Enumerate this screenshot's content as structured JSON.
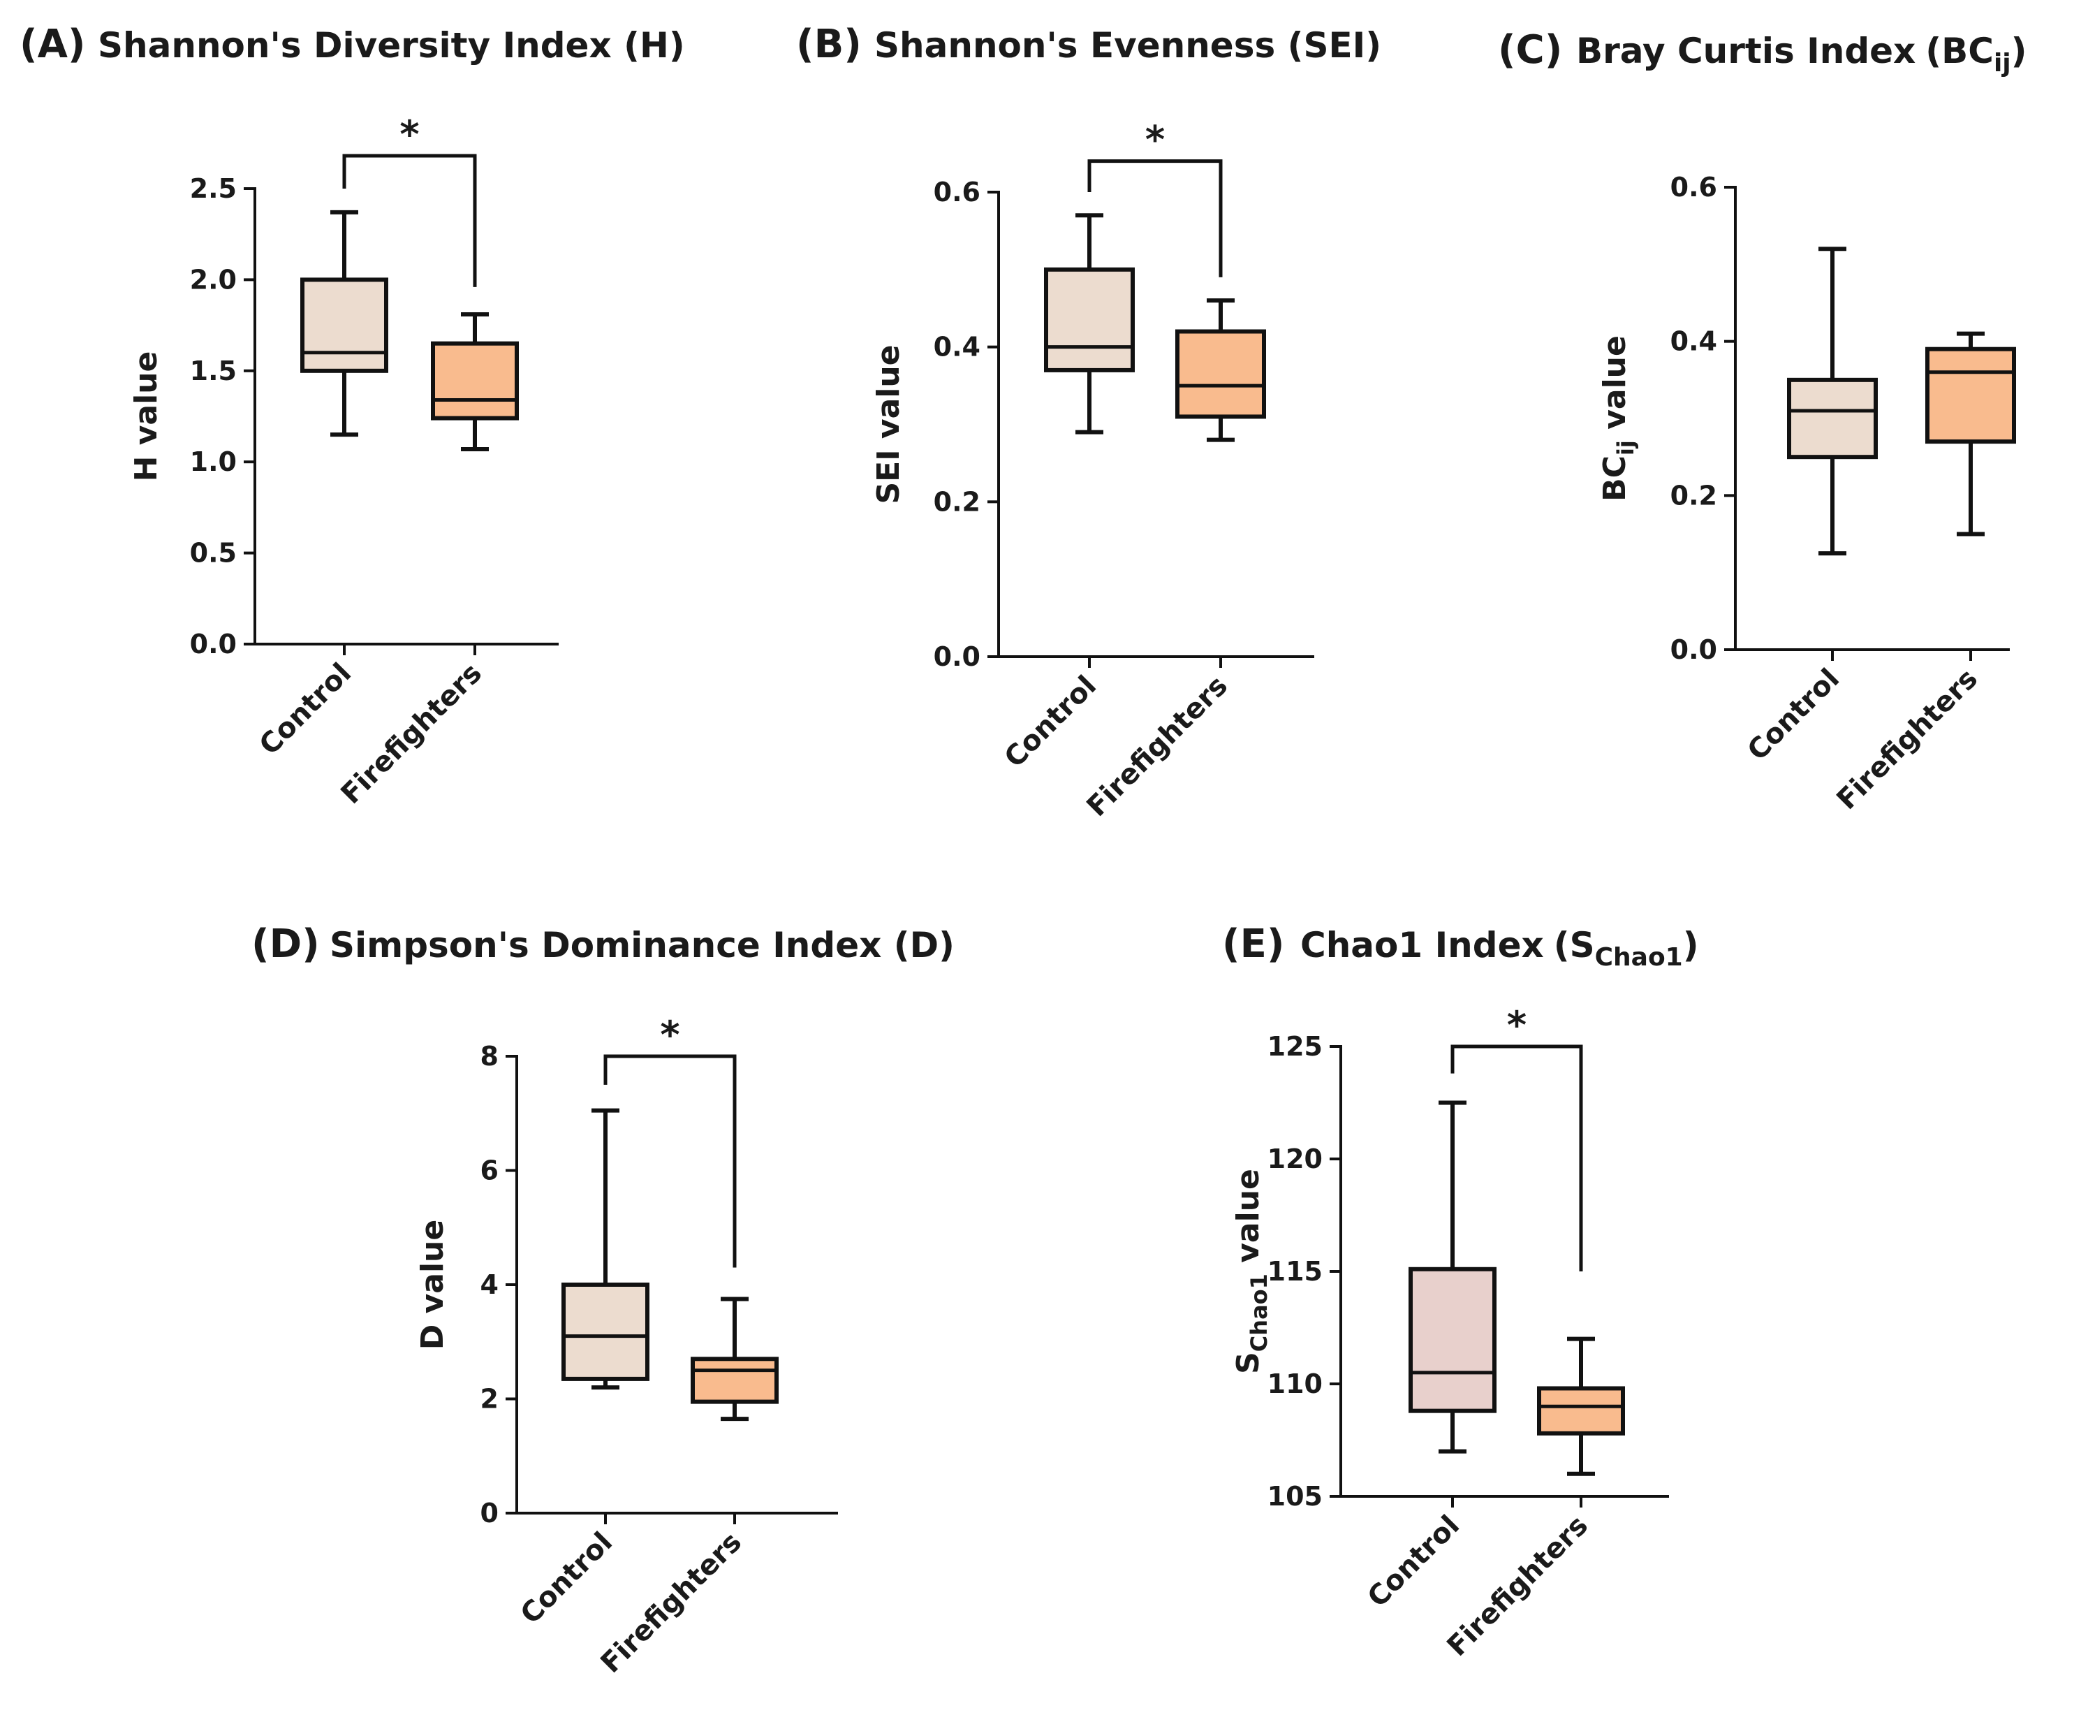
{
  "colors": {
    "control_fill": "#ecdccf",
    "control_fill_chao": "#e8d0cc",
    "firefighters_fill": "#f9bb8e",
    "stroke": "#111111"
  },
  "chart_data": [
    {
      "type": "box",
      "letter": "(A)",
      "title": "Shannon's Diversity Index (H)",
      "ylabel": "H value",
      "categories": [
        "Control",
        "Firefighters"
      ],
      "ylim": [
        0,
        2.5
      ],
      "yticks": [
        "0.0",
        "0.5",
        "1.0",
        "1.5",
        "2.0",
        "2.5"
      ],
      "series": [
        {
          "name": "Control",
          "min": 1.15,
          "q1": 1.5,
          "median": 1.6,
          "q3": 2.0,
          "max": 2.37
        },
        {
          "name": "Firefighters",
          "min": 1.07,
          "q1": 1.24,
          "median": 1.34,
          "q3": 1.65,
          "max": 1.81
        }
      ],
      "significance": {
        "label": "*",
        "bracket_y": 2.68,
        "left_end": 2.5,
        "right_end": 1.96
      }
    },
    {
      "type": "box",
      "letter": "(B)",
      "title": "Shannon's Evenness (SEI)",
      "ylabel": "SEI value",
      "categories": [
        "Control",
        "Firefighters"
      ],
      "ylim": [
        0,
        0.6
      ],
      "yticks": [
        "0.0",
        "0.2",
        "0.4",
        "0.6"
      ],
      "series": [
        {
          "name": "Control",
          "min": 0.29,
          "q1": 0.37,
          "median": 0.4,
          "q3": 0.5,
          "max": 0.57
        },
        {
          "name": "Firefighters",
          "min": 0.28,
          "q1": 0.31,
          "median": 0.35,
          "q3": 0.42,
          "max": 0.46
        }
      ],
      "significance": {
        "label": "*",
        "bracket_y": 0.64,
        "left_end": 0.6,
        "right_end": 0.49
      }
    },
    {
      "type": "box",
      "letter": "(C)",
      "title": "Bray Curtis Index",
      "title_sub": "(BC",
      "title_sub_script": "ij",
      "title_sub_close": ")",
      "ylabel_main": "BC",
      "ylabel_sub": "ij",
      "ylabel_rest": " value",
      "categories": [
        "Control",
        "Firefighters"
      ],
      "ylim": [
        0,
        0.6
      ],
      "yticks": [
        "0.0",
        "0.2",
        "0.4",
        "0.6"
      ],
      "series": [
        {
          "name": "Control",
          "min": 0.125,
          "q1": 0.25,
          "median": 0.31,
          "q3": 0.35,
          "max": 0.52
        },
        {
          "name": "Firefighters",
          "min": 0.15,
          "q1": 0.27,
          "median": 0.36,
          "q3": 0.39,
          "max": 0.41
        }
      ]
    },
    {
      "type": "box",
      "letter": "(D)",
      "title": "Simpson's Dominance Index (D)",
      "ylabel": "D value",
      "categories": [
        "Control",
        "Firefighters"
      ],
      "ylim": [
        0,
        8
      ],
      "yticks": [
        "0",
        "2",
        "4",
        "6",
        "8"
      ],
      "series": [
        {
          "name": "Control",
          "min": 2.2,
          "q1": 2.35,
          "median": 3.1,
          "q3": 4.0,
          "max": 7.05
        },
        {
          "name": "Firefighters",
          "min": 1.65,
          "q1": 1.95,
          "median": 2.5,
          "q3": 2.7,
          "max": 3.75
        }
      ],
      "significance": {
        "label": "*",
        "bracket_y": 8.0,
        "left_end": 7.5,
        "right_end": 4.3
      }
    },
    {
      "type": "box",
      "letter": "(E)",
      "title": "Chao1 Index",
      "title_sub": "(S",
      "title_sub_script": "Chao1",
      "title_sub_close": ")",
      "ylabel_main": "S",
      "ylabel_sub": "Chao1",
      "ylabel_rest": " value",
      "categories": [
        "Control",
        "Firefighters"
      ],
      "ylim": [
        105,
        125
      ],
      "yticks": [
        "105",
        "110",
        "115",
        "120",
        "125"
      ],
      "series": [
        {
          "name": "Control",
          "min": 107.0,
          "q1": 108.8,
          "median": 110.5,
          "q3": 115.1,
          "max": 122.5
        },
        {
          "name": "Firefighters",
          "min": 106.0,
          "q1": 107.8,
          "median": 109.0,
          "q3": 109.8,
          "max": 112.0
        }
      ],
      "significance": {
        "label": "*",
        "bracket_y": 125.0,
        "left_end": 123.8,
        "right_end": 115.0
      }
    }
  ]
}
